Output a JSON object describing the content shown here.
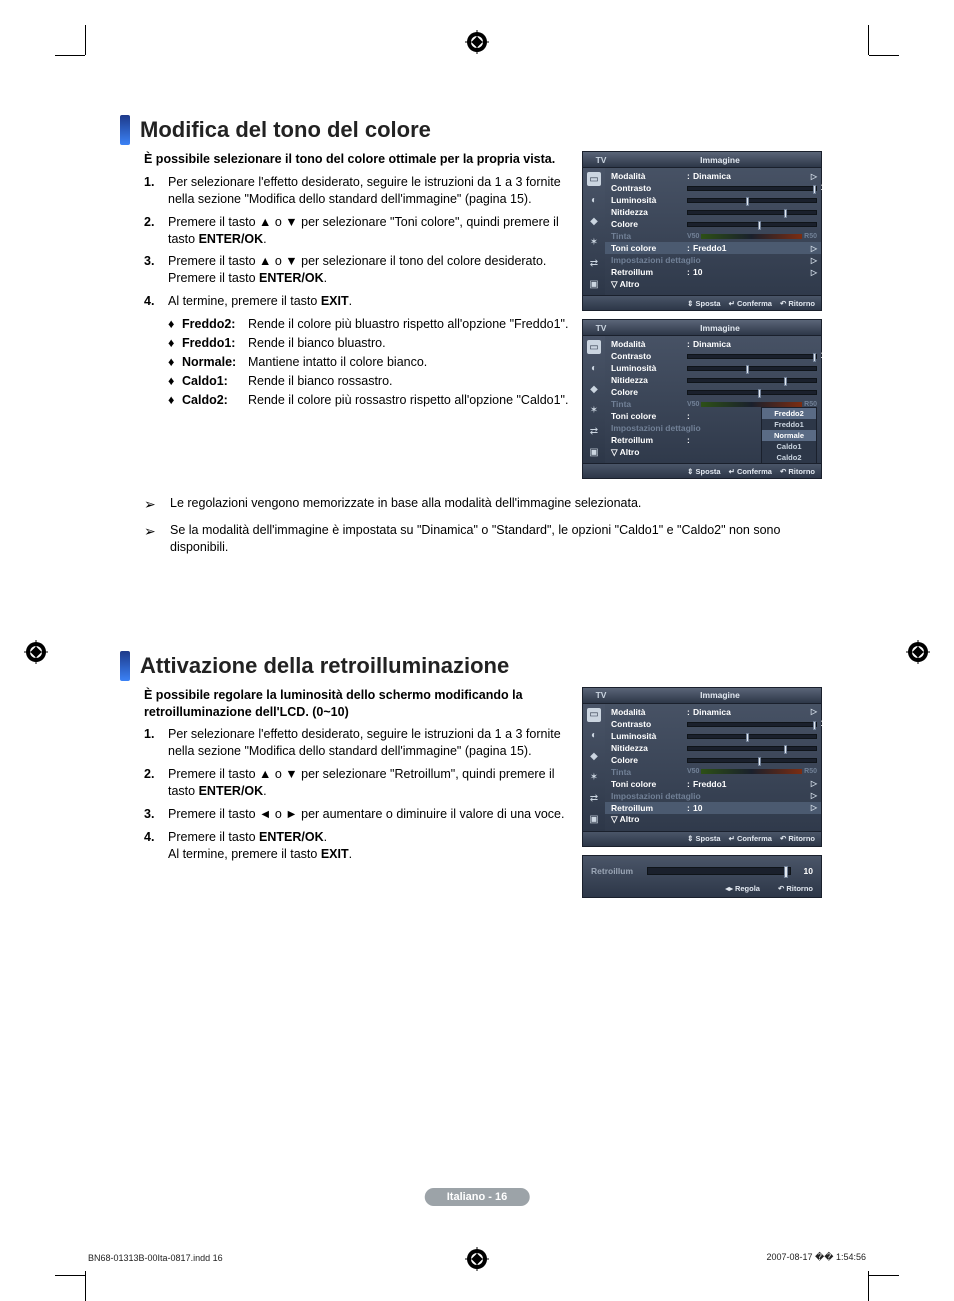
{
  "crop_marks": true,
  "section1": {
    "title": "Modifica del tono del colore",
    "intro": "È possibile selezionare il tono del colore ottimale per la propria vista.",
    "steps": [
      "Per selezionare l'effetto desiderato, seguire le istruzioni da 1 a 3 fornite nella sezione \"Modifica dello standard dell'immagine\" (pagina 15).",
      "Premere il tasto ▲ o ▼ per selezionare \"Toni colore\", quindi premere il tasto ENTER/OK.",
      "Premere il tasto ▲ o ▼ per selezionare il tono del colore desiderato. Premere il tasto ENTER/OK.",
      "Al termine, premere il tasto EXIT."
    ],
    "options": [
      {
        "k": "Freddo2:",
        "v": "Rende il colore più bluastro rispetto all'opzione \"Freddo1\"."
      },
      {
        "k": "Freddo1:",
        "v": "Rende il bianco bluastro."
      },
      {
        "k": "Normale:",
        "v": "Mantiene intatto il colore bianco."
      },
      {
        "k": "Caldo1:",
        "v": "Rende il bianco rossastro."
      },
      {
        "k": "Caldo2:",
        "v": "Rende il colore più rossastro rispetto all'opzione \"Caldo1\"."
      }
    ],
    "notes": [
      "Le regolazioni vengono memorizzate in base alla modalità  dell'immagine selezionata.",
      "Se la modalità dell'immagine è impostata su \"Dinamica\" o \"Standard\", le opzioni \"Caldo1\" e \"Caldo2\" non sono disponibili."
    ]
  },
  "section2": {
    "title": "Attivazione della retroilluminazione",
    "intro": "È possibile regolare la luminosità dello schermo modificando la retroilluminazione dell'LCD. (0~10)",
    "steps": [
      "Per selezionare l'effetto desiderato, seguire le istruzioni da 1 a 3 fornite nella sezione \"Modifica dello standard dell'immagine\" (pagina 15).",
      "Premere il tasto ▲ o ▼ per selezionare \"Retroillum\", quindi premere il tasto ENTER/OK.",
      "Premere il tasto ◄ o ► per aumentare o diminuire il valore di una voce.",
      "Premere il tasto ENTER/OK.\nAl termine, premere il tasto EXIT."
    ]
  },
  "osd_common": {
    "tv": "TV",
    "title": "Immagine",
    "rows": {
      "modalita": {
        "k": "Modalità",
        "v": "Dinamica"
      },
      "contrasto": {
        "k": "Contrasto",
        "n": "100",
        "pct": 98
      },
      "luminosita": {
        "k": "Luminosità",
        "n": "45",
        "pct": 45
      },
      "nitidezza": {
        "k": "Nitidezza",
        "n": "75",
        "pct": 75
      },
      "colore": {
        "k": "Colore",
        "n": "55",
        "pct": 55
      },
      "tinta": {
        "k": "Tinta",
        "l": "V50",
        "r": "R50"
      },
      "toni": {
        "k": "Toni colore",
        "v": "Freddo1"
      },
      "imp": {
        "k": "Impostazioni dettaglio"
      },
      "retro": {
        "k": "Retroillum",
        "v": "10"
      },
      "altro": {
        "k": "▽ Altro"
      }
    },
    "footer": {
      "move": "Sposta",
      "enter": "Conferma",
      "return": "Ritorno"
    }
  },
  "osd2_dropdown": [
    "Freddo2",
    "Freddo1",
    "Normale",
    "Caldo1",
    "Caldo2"
  ],
  "osd_bar": {
    "label": "Retroillum",
    "value": "10",
    "pct": 98,
    "footer": {
      "adjust": "Regola",
      "return": "Ritorno"
    }
  },
  "page_badge": "Italiano - 16",
  "foot_left": "BN68-01313B-00Ita-0817.indd   16",
  "foot_right": "2007-08-17   �� 1:54:56",
  "colors": {
    "accent_grad_top": "#1e3a8a",
    "accent_grad_bot": "#3b82f6",
    "osd_bg_top": "#4a5568",
    "osd_bg_bot": "#2d3748",
    "osd_border": "#1a202c",
    "osd_dim": "#718096",
    "osd_hl": "#4b5a70",
    "badge_bg": "#9ca3a8"
  }
}
